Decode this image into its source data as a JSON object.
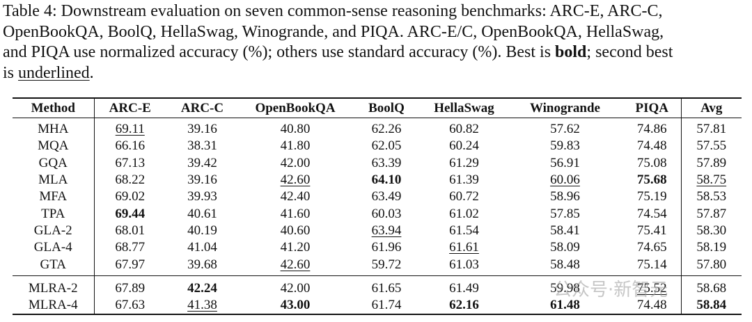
{
  "caption": {
    "lines": [
      [
        {
          "text": "Table 4: Downstream evaluation on seven common-sense reasoning benchmarks: ARC-E, ARC-C,"
        }
      ],
      [
        {
          "text": "OpenBookQA, BoolQ, HellaSwag, Winogrande, and PIQA. ARC-E/C, OpenBookQA, HellaSwag,"
        }
      ],
      [
        {
          "text": "and PIQA use normalized accuracy (%); others use standard accuracy (%). Best is "
        },
        {
          "text": "bold",
          "style": "bold"
        },
        {
          "text": "; second best"
        }
      ],
      [
        {
          "text": "is "
        },
        {
          "text": "underlined",
          "style": "underline"
        },
        {
          "text": "."
        }
      ]
    ]
  },
  "table": {
    "header": [
      "Method",
      "ARC-E",
      "ARC-C",
      "OpenBookQA",
      "BoolQ",
      "HellaSwag",
      "Winogrande",
      "PIQA",
      "Avg"
    ],
    "groups": [
      {
        "rows": [
          [
            "MHA",
            {
              "text": "69.11",
              "style": "underline"
            },
            "39.16",
            "40.80",
            "62.26",
            "60.82",
            "57.62",
            "74.86",
            "57.81"
          ],
          [
            "MQA",
            "66.16",
            "38.31",
            "41.80",
            "62.05",
            "60.24",
            "59.83",
            "74.48",
            "57.55"
          ],
          [
            "GQA",
            "67.13",
            "39.42",
            "42.00",
            "63.39",
            "61.29",
            "56.91",
            "75.08",
            "57.89"
          ],
          [
            "MLA",
            "68.22",
            "39.16",
            {
              "text": "42.60",
              "style": "underline"
            },
            {
              "text": "64.10",
              "style": "bold"
            },
            "61.39",
            {
              "text": "60.06",
              "style": "underline"
            },
            {
              "text": "75.68",
              "style": "bold"
            },
            {
              "text": "58.75",
              "style": "underline"
            }
          ],
          [
            "MFA",
            "69.02",
            "39.93",
            "42.40",
            "63.49",
            "60.72",
            "58.96",
            "75.19",
            "58.53"
          ],
          [
            "TPA",
            {
              "text": "69.44",
              "style": "bold"
            },
            "40.61",
            "41.60",
            "60.03",
            "61.02",
            "57.85",
            "74.54",
            "57.87"
          ],
          [
            "GLA-2",
            "68.01",
            "40.19",
            "40.60",
            {
              "text": "63.94",
              "style": "underline"
            },
            "61.54",
            "58.41",
            "75.41",
            "58.30"
          ],
          [
            "GLA-4",
            "68.77",
            "41.04",
            "41.20",
            "61.96",
            {
              "text": "61.61",
              "style": "underline"
            },
            "58.09",
            "74.65",
            "58.19"
          ],
          [
            "GTA",
            "67.97",
            "39.68",
            {
              "text": "42.60",
              "style": "underline"
            },
            "59.72",
            "61.03",
            "58.48",
            "75.14",
            "57.80"
          ]
        ]
      },
      {
        "rows": [
          [
            "MLRA-2",
            "67.89",
            {
              "text": "42.24",
              "style": "bold"
            },
            "42.00",
            "61.65",
            "61.49",
            "59.98",
            {
              "text": "75.52",
              "style": "underline"
            },
            "58.68"
          ],
          [
            "MLRA-4",
            "67.63",
            {
              "text": "41.38",
              "style": "underline"
            },
            {
              "text": "43.00",
              "style": "bold"
            },
            "61.74",
            {
              "text": "62.16",
              "style": "bold"
            },
            {
              "text": "61.48",
              "style": "bold"
            },
            "74.48",
            {
              "text": "58.84",
              "style": "bold"
            }
          ]
        ]
      }
    ]
  },
  "watermark": "公众号·新智元"
}
